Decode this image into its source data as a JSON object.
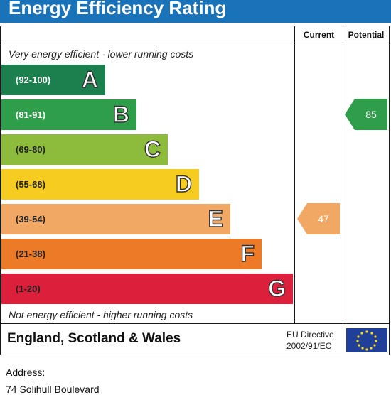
{
  "title": "Energy Efficiency Rating",
  "columns": {
    "current": "Current",
    "potential": "Potential"
  },
  "captions": {
    "top": "Very energy efficient - lower running costs",
    "bottom": "Not energy efficient - higher running costs"
  },
  "chart_data": {
    "type": "bar",
    "title": "Energy Efficiency Rating",
    "categories": [
      "A",
      "B",
      "C",
      "D",
      "E",
      "F",
      "G"
    ],
    "bands": [
      {
        "letter": "A",
        "range": "(92-100)",
        "color": "#1b7f4e",
        "text_color": "#ffffff"
      },
      {
        "letter": "B",
        "range": "(81-91)",
        "color": "#2f9e4a",
        "text_color": "#ffffff"
      },
      {
        "letter": "C",
        "range": "(69-80)",
        "color": "#8dbb3b",
        "text_color": "#222222"
      },
      {
        "letter": "D",
        "range": "(55-68)",
        "color": "#f5cc1f",
        "text_color": "#222222"
      },
      {
        "letter": "E",
        "range": "(39-54)",
        "color": "#f2a865",
        "text_color": "#222222"
      },
      {
        "letter": "F",
        "range": "(21-38)",
        "color": "#ec7a26",
        "text_color": "#222222"
      },
      {
        "letter": "G",
        "range": "(1-20)",
        "color": "#dc1f3b",
        "text_color": "#222222"
      }
    ],
    "current": {
      "value": 47,
      "band": "E",
      "color": "#f2a865"
    },
    "potential": {
      "value": 85,
      "band": "B",
      "color": "#2f9e4a"
    }
  },
  "footer": {
    "region": "England, Scotland & Wales",
    "directive_line1": "EU Directive",
    "directive_line2": "2002/91/EC"
  },
  "address": {
    "label": "Address:",
    "value": "74 Solihull Boulevard"
  }
}
